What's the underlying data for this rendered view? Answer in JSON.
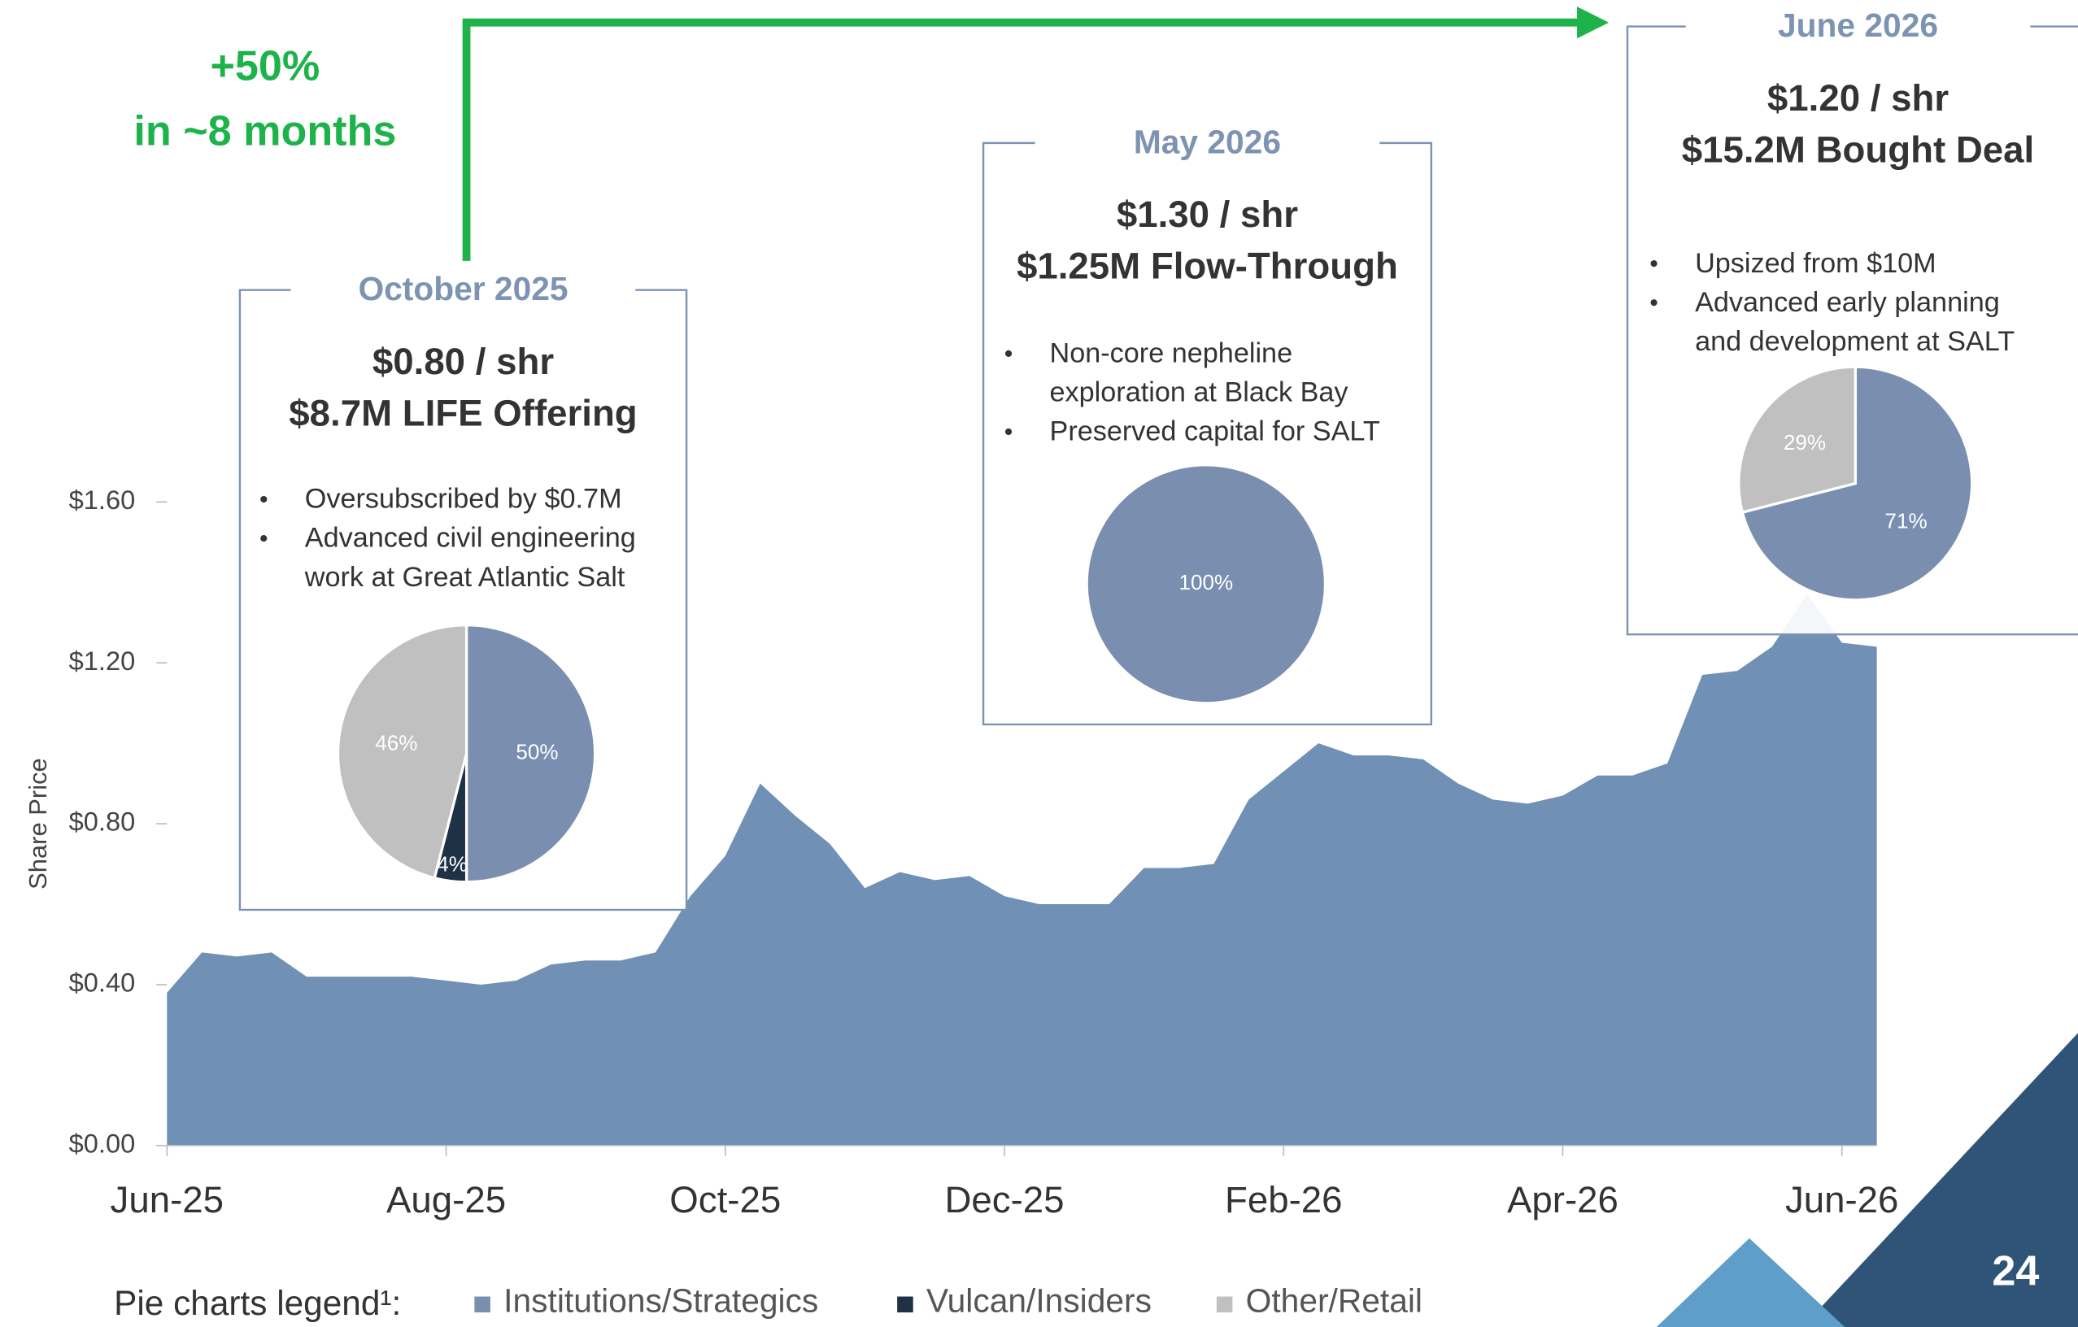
{
  "chart_data": {
    "type": "area",
    "y_label": "Share Price",
    "color": "#7090b5",
    "categories": [
      "Jun-25",
      null,
      null,
      null,
      null,
      null,
      null,
      null,
      "Aug-25",
      null,
      null,
      null,
      null,
      null,
      null,
      null,
      "Oct-25",
      null,
      null,
      null,
      null,
      null,
      null,
      null,
      "Dec-25",
      null,
      null,
      null,
      null,
      null,
      null,
      null,
      "Feb-26",
      null,
      null,
      null,
      null,
      null,
      null,
      null,
      "Apr-26",
      null,
      null,
      null,
      null,
      null,
      null,
      null,
      "Jun-26",
      null
    ],
    "values": [
      0.38,
      0.48,
      0.47,
      0.48,
      0.42,
      0.42,
      0.42,
      0.42,
      0.41,
      0.4,
      0.41,
      0.45,
      0.46,
      0.46,
      0.48,
      0.62,
      0.72,
      0.9,
      0.82,
      0.75,
      0.64,
      0.68,
      0.66,
      0.67,
      0.62,
      0.6,
      0.6,
      0.6,
      0.69,
      0.69,
      0.7,
      0.86,
      0.93,
      1.0,
      0.97,
      0.97,
      0.96,
      0.9,
      0.86,
      0.85,
      0.87,
      0.92,
      0.92,
      0.95,
      1.17,
      1.18,
      1.24,
      1.37,
      1.25,
      1.24
    ],
    "ylim": [
      0,
      1.6
    ],
    "yticks": [
      {
        "value": 0,
        "label": "$0.00"
      },
      {
        "value": 0.4,
        "label": "$0.40"
      },
      {
        "value": 0.8,
        "label": "$0.80"
      },
      {
        "value": 1.2,
        "label": "$1.20"
      },
      {
        "value": 1.6,
        "label": "$1.60"
      }
    ]
  },
  "growth": {
    "line1": "+50%",
    "line2": "in ~8 months"
  },
  "legend": {
    "title": "Pie charts legend¹:",
    "series": [
      {
        "name": "Institutions/Strategics",
        "color": "#7a8fb0"
      },
      {
        "name": "Vulcan/Insiders",
        "color": "#1f3144"
      },
      {
        "name": "Other/Retail",
        "color": "#c0c0c0"
      }
    ]
  },
  "callouts": [
    {
      "date": "October 2025",
      "price": "$0.80 / shr",
      "deal": "$8.7M LIFE Offering",
      "bullets": [
        [
          "Oversubscribed by $0.7M"
        ],
        [
          "Advanced civil engineering",
          "work at Great Atlantic Salt"
        ]
      ],
      "pie": {
        "type": "pie",
        "categories": [
          "Institutions/Strategics",
          "Vulcan/Insiders",
          "Other/Retail"
        ],
        "values": [
          50,
          4,
          46
        ],
        "value_labels": [
          "50%",
          "4%",
          "46%"
        ]
      }
    },
    {
      "date": "May 2026",
      "price": "$1.30 / shr",
      "deal": "$1.25M Flow-Through",
      "bullets": [
        [
          "Non-core nepheline",
          "exploration at Black Bay"
        ],
        [
          "Preserved capital for SALT"
        ]
      ],
      "pie": {
        "type": "pie",
        "categories": [
          "Institutions/Strategics"
        ],
        "values": [
          100
        ],
        "value_labels": [
          "100%"
        ]
      }
    },
    {
      "date": "June 2026",
      "price": "$1.20 / shr",
      "deal": "$15.2M Bought Deal",
      "bullets": [
        [
          "Upsized from $10M"
        ],
        [
          "Advanced early planning",
          "and development at SALT"
        ]
      ],
      "pie": {
        "type": "pie",
        "categories": [
          "Institutions/Strategics",
          "Other/Retail"
        ],
        "values": [
          71,
          29
        ],
        "value_labels": [
          "71%",
          "29%"
        ]
      }
    }
  ],
  "page_number": "24"
}
